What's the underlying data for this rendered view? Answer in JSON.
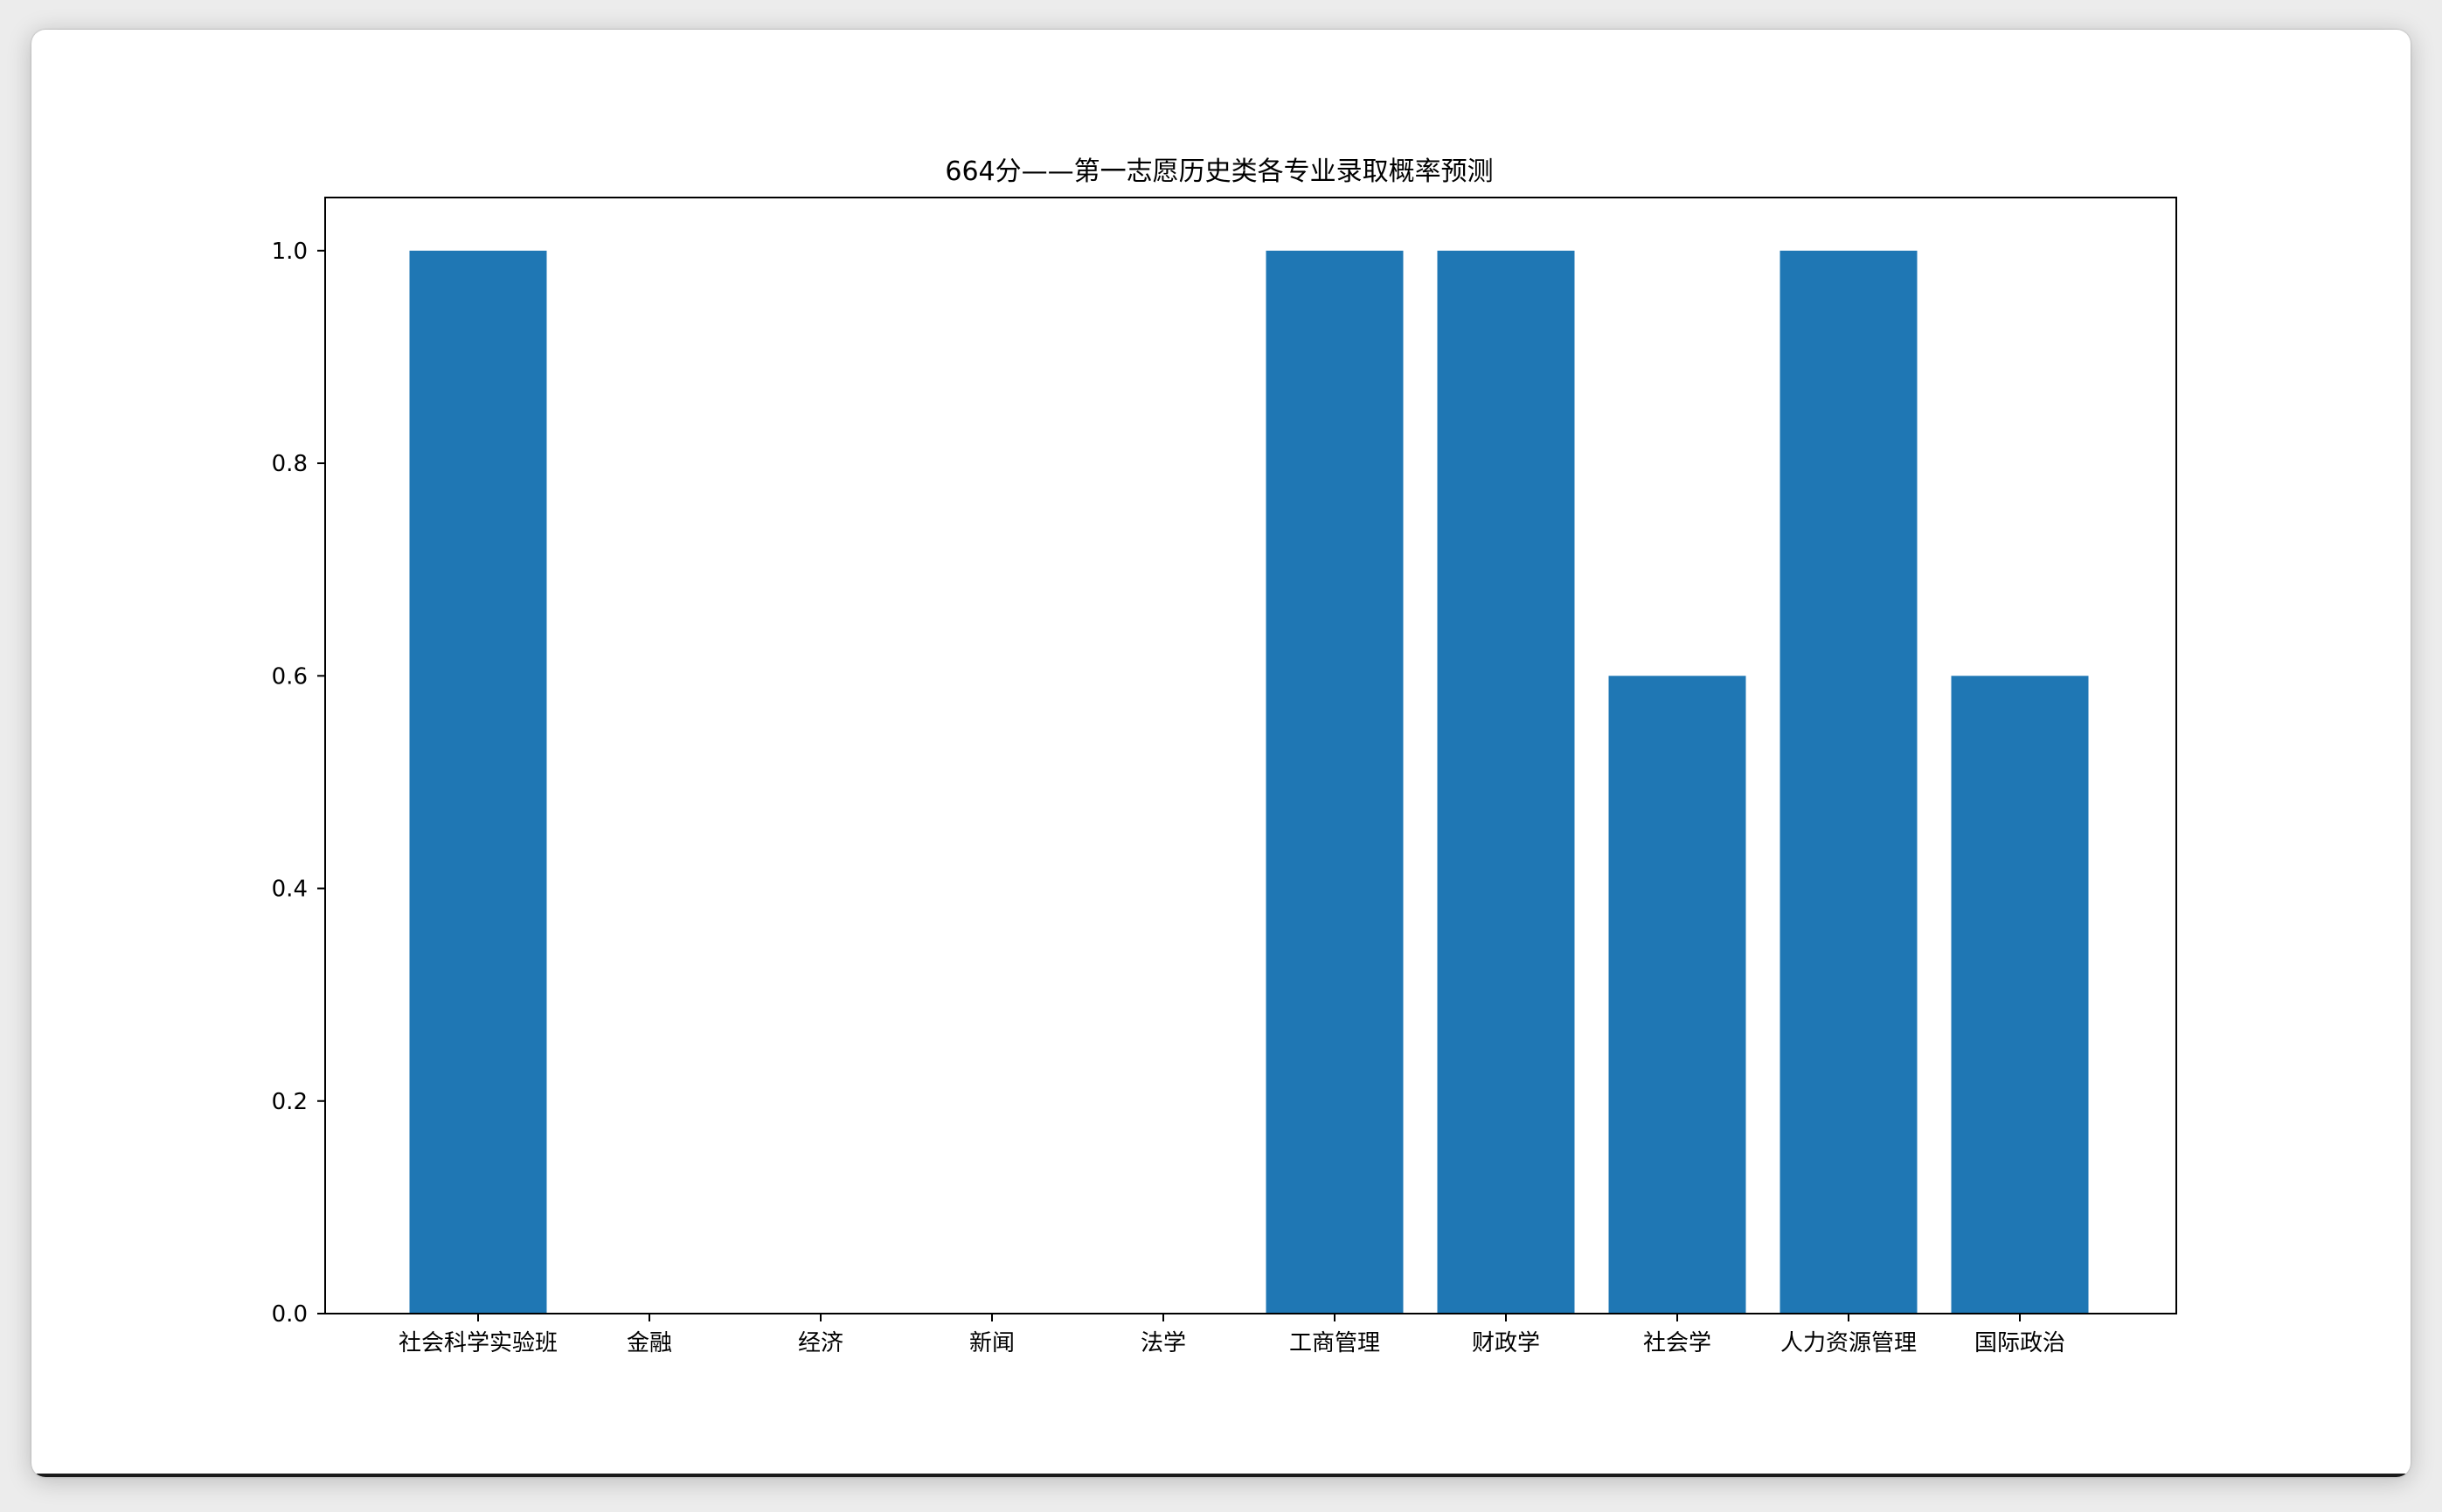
{
  "chart_data": {
    "type": "bar",
    "title": "664分——第一志愿历史类各专业录取概率预测",
    "xlabel": "",
    "ylabel": "",
    "categories": [
      "社会科学实验班",
      "金融",
      "经济",
      "新闻",
      "法学",
      "工商管理",
      "财政学",
      "社会学",
      "人力资源管理",
      "国际政治"
    ],
    "values": [
      1.0,
      0.0,
      0.0,
      0.0,
      0.0,
      1.0,
      1.0,
      0.6,
      1.0,
      0.6
    ],
    "ylim": [
      0,
      1.05
    ],
    "yticks": [
      0.0,
      0.2,
      0.4,
      0.6,
      0.8,
      1.0
    ],
    "ytick_labels": [
      "0.0",
      "0.2",
      "0.4",
      "0.6",
      "0.8",
      "1.0"
    ],
    "bar_color": "#1f77b4",
    "grid": false,
    "legend": "none"
  }
}
